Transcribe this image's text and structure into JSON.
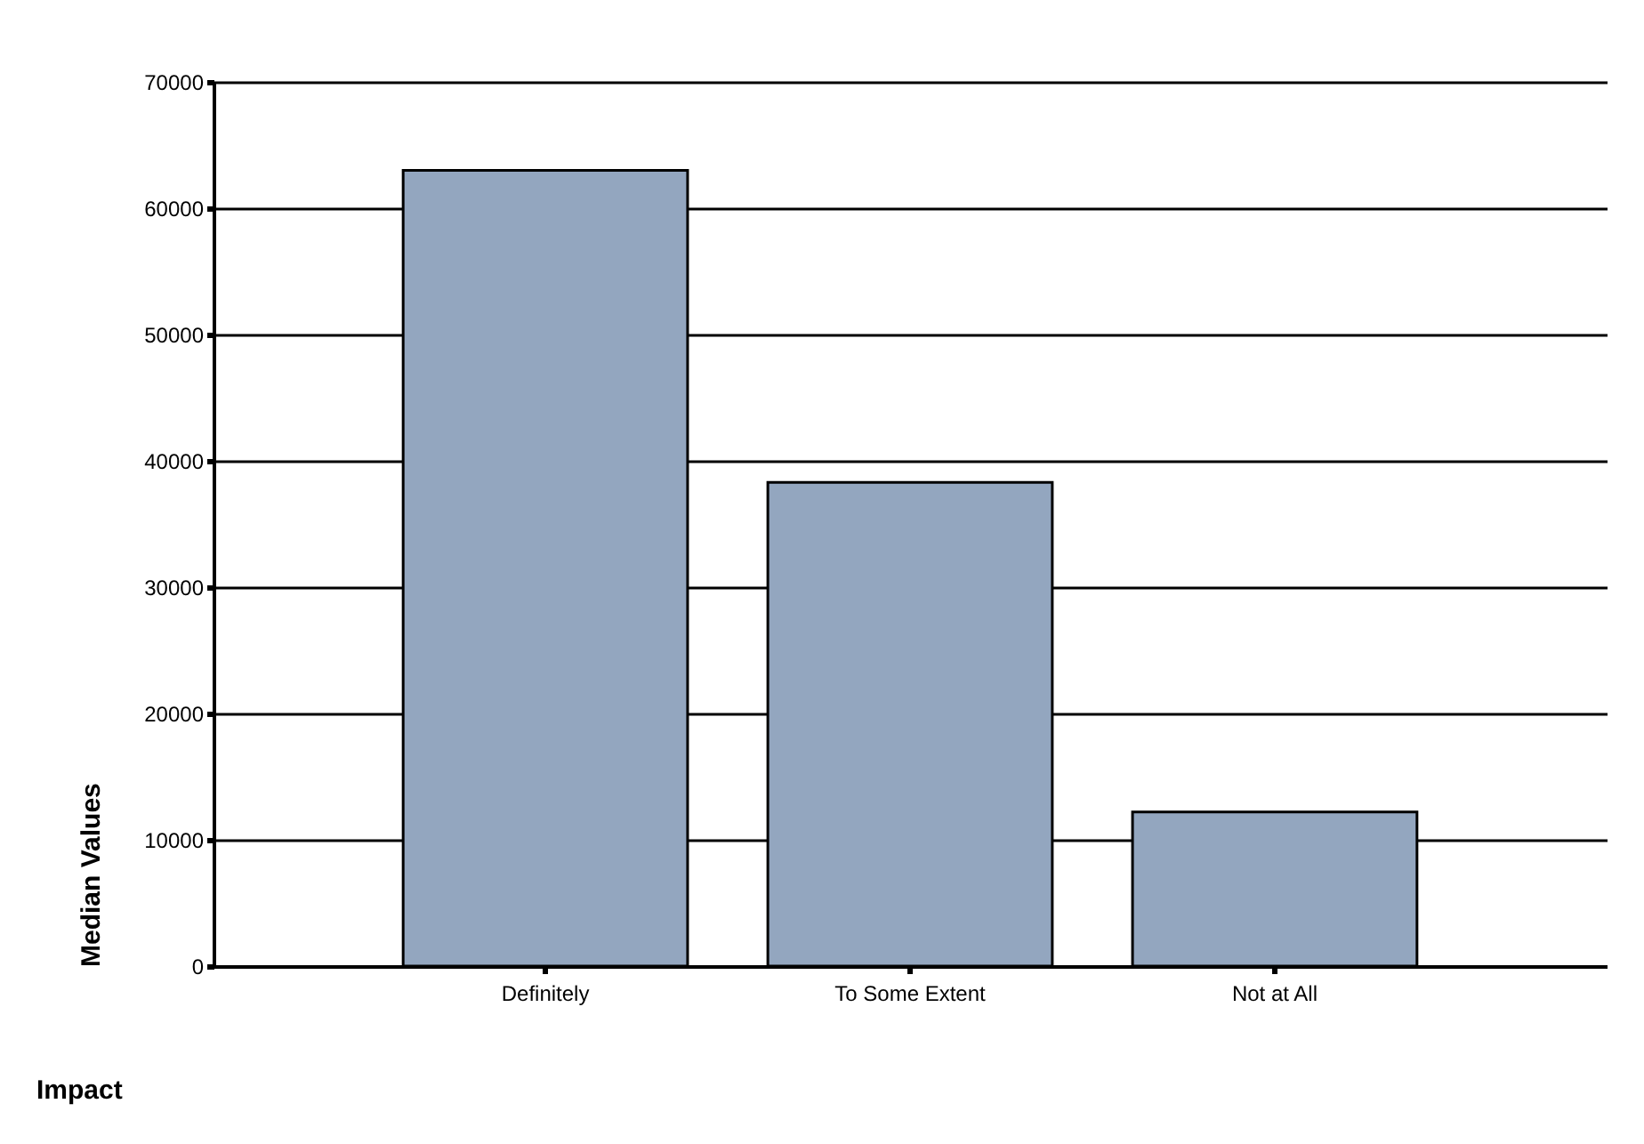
{
  "chart_data": {
    "type": "bar",
    "xlabel": "Impact",
    "ylabel": "Median Values",
    "categories": [
      "Definitely",
      "To Some Extent",
      "Not at All"
    ],
    "values": [
      63000,
      38300,
      12200
    ],
    "color": "#93a6bf",
    "ylim": [
      0,
      70000
    ],
    "yticks": [
      0,
      10000,
      20000,
      30000,
      40000,
      50000,
      60000,
      70000
    ],
    "grid": "y"
  }
}
